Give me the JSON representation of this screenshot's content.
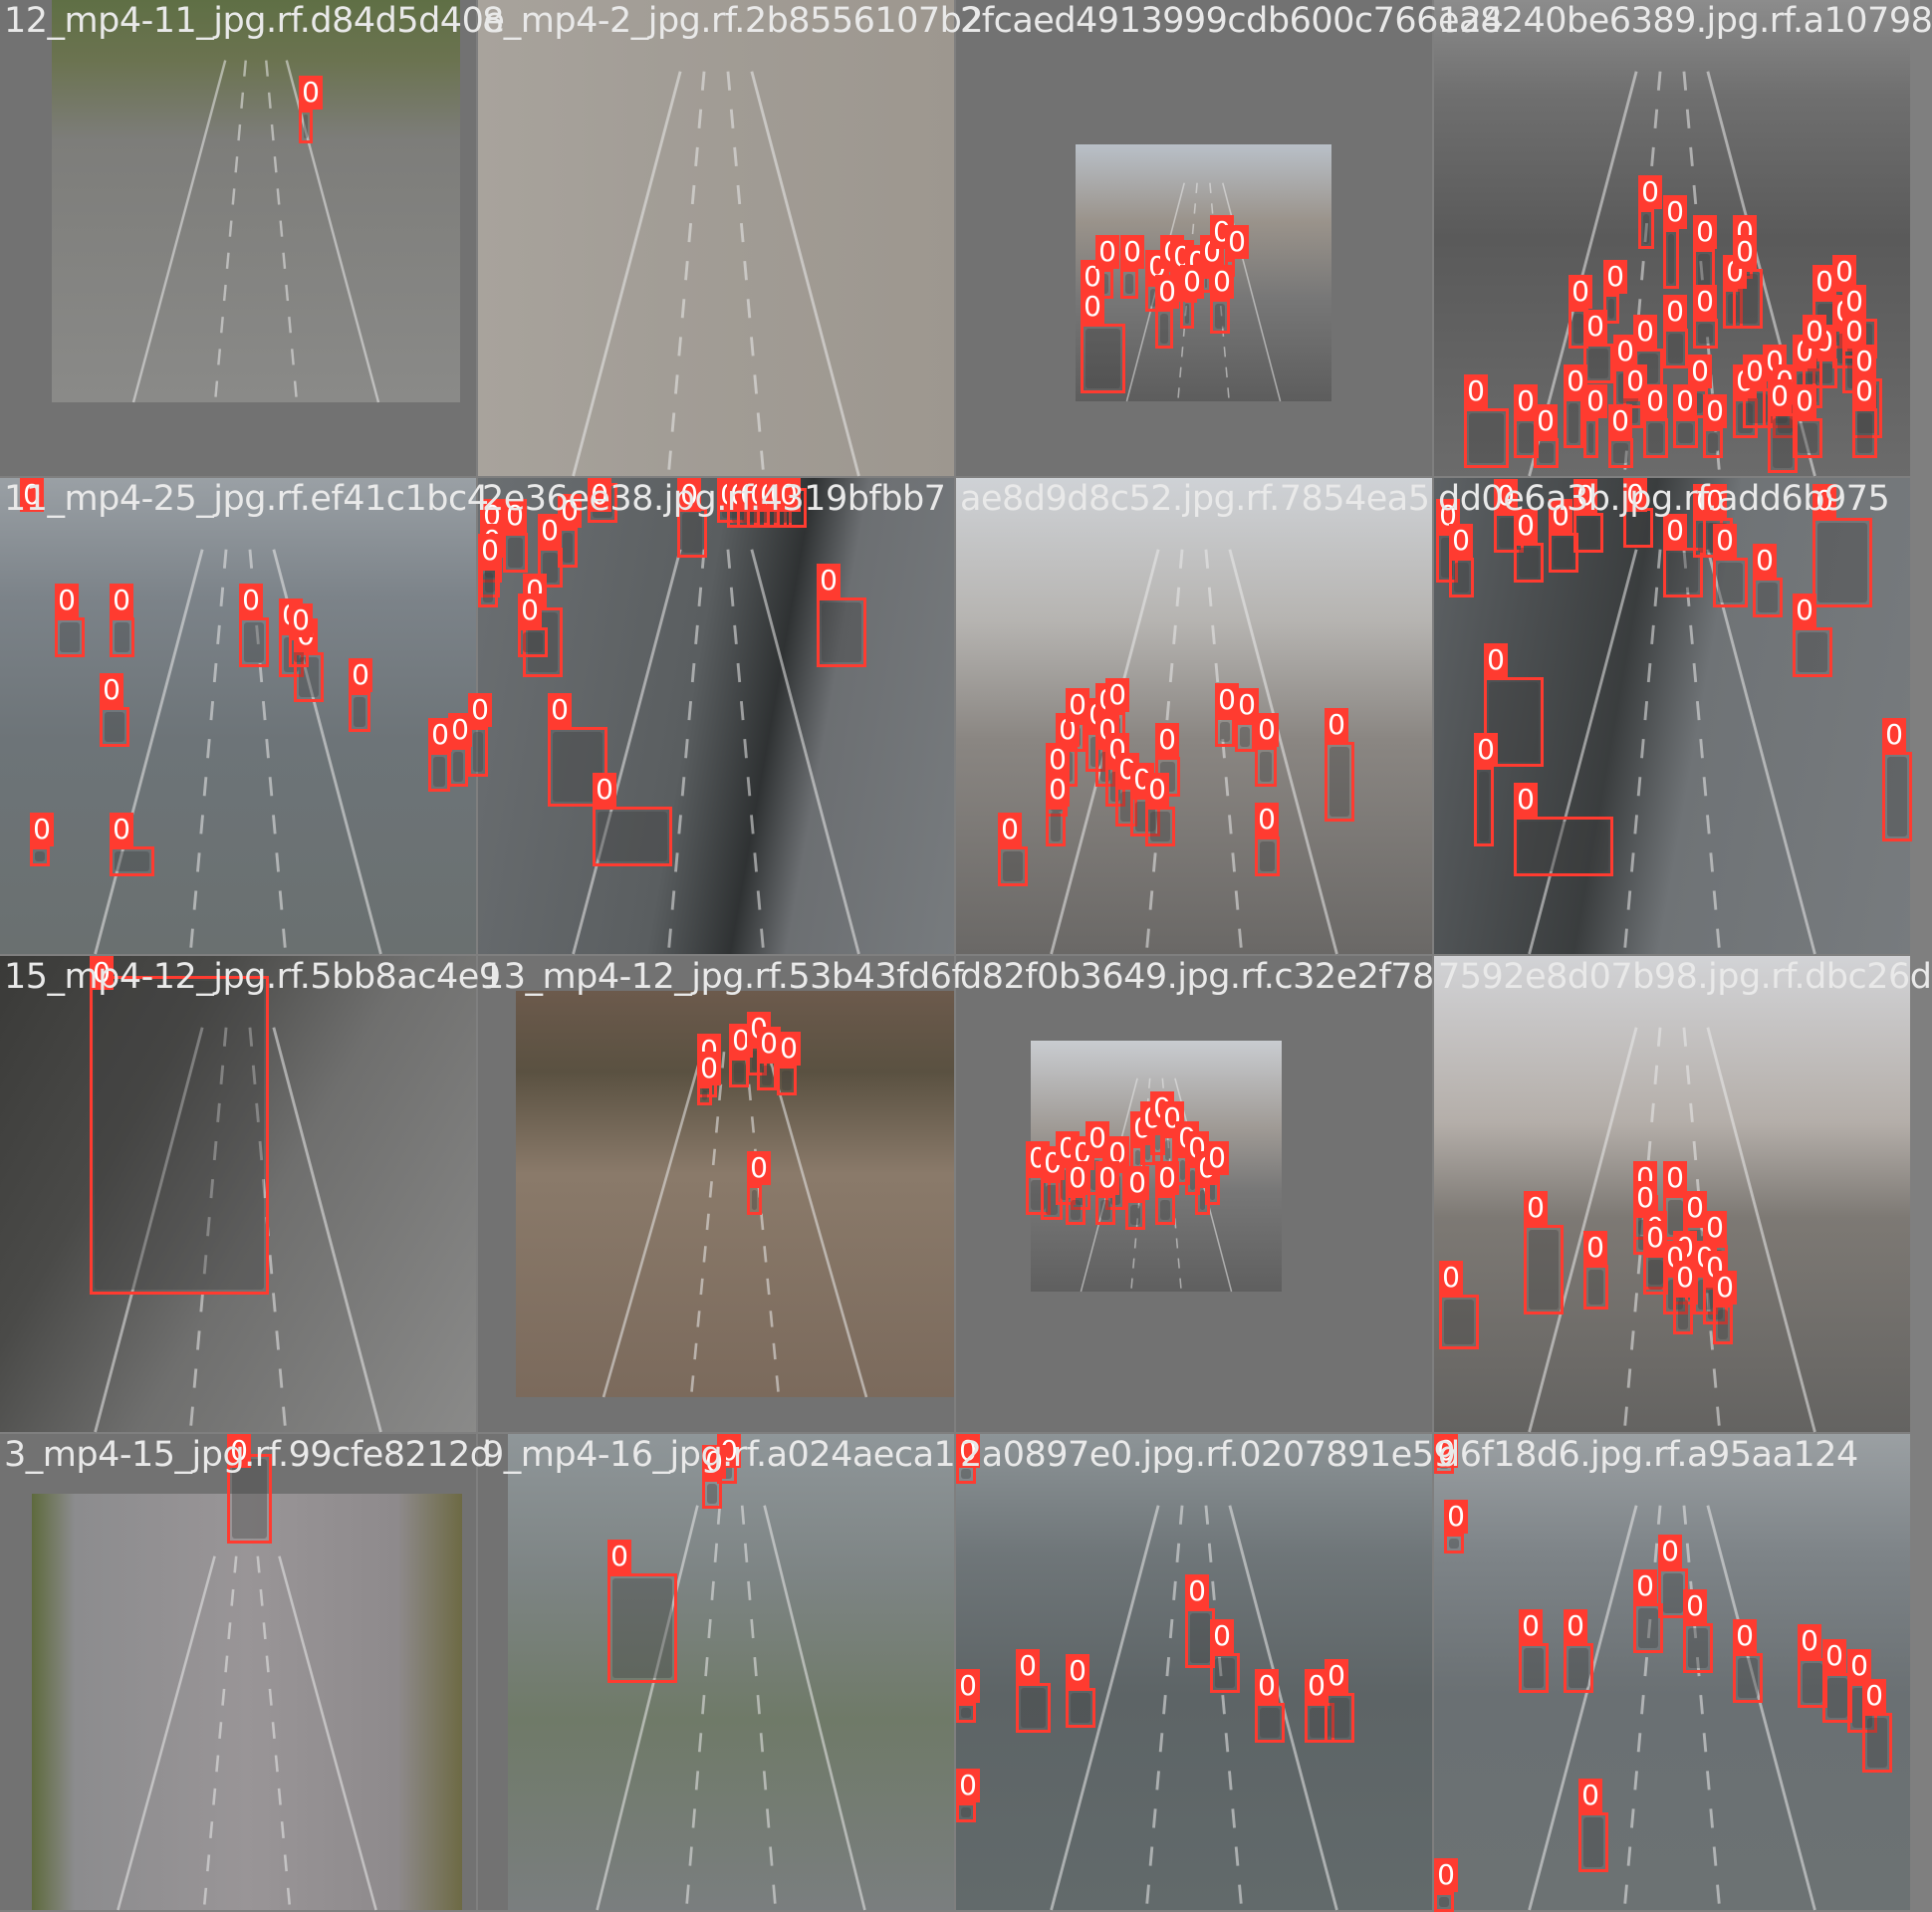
{
  "mosaic": {
    "class_label": "0",
    "colors": {
      "background": "#727272",
      "box": "#ff3b30",
      "filename_text": "#e9e9e9",
      "label_text": "#ffffff"
    },
    "tiles": [
      {
        "filename": "12_mp4-11_jpg.rf.d84d5d40e",
        "scene": "highway-aerial",
        "boxes": 1
      },
      {
        "filename": "8_mp4-2_jpg.rf.2b8556107b2",
        "scene": "highway-topdown",
        "boxes": 0
      },
      {
        "filename": "2fcaed4913999cdb600c766124",
        "scene": "tunnel-small",
        "boxes": 14
      },
      {
        "filename": "ea8240be6389.jpg.rf.a10798",
        "scene": "tunnel-gray",
        "boxes": 40
      },
      {
        "filename": "11_mp4-25_jpg.rf.ef41c1bc4",
        "scene": "highway-sign",
        "boxes": 14
      },
      {
        "filename": "2e36ee38.jpg.rf.4319bfbb7",
        "scene": "curve-highway",
        "boxes": 20
      },
      {
        "filename": "ae8d9d8c52.jpg.rf.7854ea5",
        "scene": "tunnel-day",
        "boxes": 19
      },
      {
        "filename": "dd0e6a3b.jpg.rf.add6b975",
        "scene": "curve-highway-right",
        "boxes": 18
      },
      {
        "filename": "15_mp4-12_jpg.rf.5bb8ac4e9",
        "scene": "truck",
        "boxes": 1
      },
      {
        "filename": "13_mp4-12_jpg.rf.53b43fd6f",
        "scene": "highway-dusk",
        "boxes": 7
      },
      {
        "filename": "d82f0b3649.jpg.rf.c32e2f78",
        "scene": "tunnel-small2",
        "boxes": 18
      },
      {
        "filename": "7592e8d07b98.jpg.rf.dbc26d",
        "scene": "tunnel-wide",
        "boxes": 16
      },
      {
        "filename": "3_mp4-15_jpg.rf.99cfe8212d",
        "scene": "road-straight",
        "boxes": 1
      },
      {
        "filename": "9_mp4-16_jpg.rf.a024aeca1",
        "scene": "highway-trailer",
        "boxes": 3
      },
      {
        "filename": "2a0897e0.jpg.rf.0207891e59",
        "scene": "highway-sign2",
        "boxes": 10
      },
      {
        "filename": "d6f18d6.jpg.rf.a95aa124",
        "scene": "highway-sign3",
        "boxes": 14
      }
    ]
  }
}
